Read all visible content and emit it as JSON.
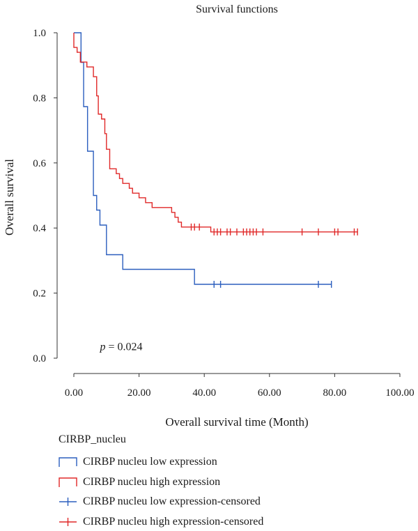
{
  "chart_data": {
    "type": "line",
    "subtype": "kaplan-meier step",
    "title": "Survival functions",
    "xlabel": "Overall survival time (Month)",
    "ylabel": "Overall survival",
    "xlim": [
      0,
      100
    ],
    "ylim": [
      0,
      1
    ],
    "x_ticks": [
      0,
      20,
      40,
      60,
      80,
      100
    ],
    "x_tick_labels": [
      "0.00",
      "20.00",
      "40.00",
      "60.00",
      "80.00",
      "100.00"
    ],
    "y_ticks": [
      0,
      0.2,
      0.4,
      0.6,
      0.8,
      1.0
    ],
    "y_tick_labels": [
      "0.0",
      "0.2",
      "0.4",
      "0.6",
      "0.8",
      "1.0"
    ],
    "grid": false,
    "annotation": {
      "italic": "p",
      "text": " = 0.024",
      "x": 8,
      "y": 0.02
    },
    "legend": {
      "title": "CIRBP_nucleu",
      "placement": "below",
      "entries": [
        {
          "label": "CIRBP nucleu low expression",
          "color": "#2b5ebe",
          "kind": "step"
        },
        {
          "label": "CIRBP nucleu high expression",
          "color": "#e02828",
          "kind": "step"
        },
        {
          "label": "CIRBP nucleu low expression-censored",
          "color": "#2b5ebe",
          "kind": "cross"
        },
        {
          "label": "CIRBP nucleu high expression-censored",
          "color": "#e02828",
          "kind": "cross"
        }
      ]
    },
    "series": [
      {
        "name": "CIRBP nucleu low expression",
        "color": "#2b5ebe",
        "steps": [
          [
            0,
            1.0
          ],
          [
            2.2,
            0.909
          ],
          [
            3,
            0.773
          ],
          [
            4.2,
            0.636
          ],
          [
            6,
            0.5
          ],
          [
            7,
            0.455
          ],
          [
            8,
            0.409
          ],
          [
            10,
            0.318
          ],
          [
            15,
            0.273
          ],
          [
            37,
            0.227
          ],
          [
            79,
            0.227
          ]
        ],
        "censored": [
          [
            43,
            0.227
          ],
          [
            45,
            0.227
          ],
          [
            75,
            0.227
          ],
          [
            79,
            0.227
          ]
        ]
      },
      {
        "name": "CIRBP nucleu high expression",
        "color": "#e02828",
        "steps": [
          [
            0,
            1.0
          ],
          [
            0,
            0.955
          ],
          [
            1,
            0.94
          ],
          [
            2,
            0.91
          ],
          [
            4,
            0.895
          ],
          [
            6,
            0.865
          ],
          [
            7,
            0.806
          ],
          [
            7.5,
            0.75
          ],
          [
            8.5,
            0.735
          ],
          [
            9.5,
            0.69
          ],
          [
            10,
            0.642
          ],
          [
            11,
            0.582
          ],
          [
            13,
            0.567
          ],
          [
            14,
            0.552
          ],
          [
            15,
            0.537
          ],
          [
            17,
            0.522
          ],
          [
            18,
            0.507
          ],
          [
            20,
            0.493
          ],
          [
            22,
            0.478
          ],
          [
            24,
            0.463
          ],
          [
            30,
            0.448
          ],
          [
            31,
            0.433
          ],
          [
            32,
            0.418
          ],
          [
            33,
            0.403
          ],
          [
            42,
            0.388
          ],
          [
            87,
            0.388
          ]
        ],
        "censored": [
          [
            36,
            0.403
          ],
          [
            37,
            0.403
          ],
          [
            38.5,
            0.403
          ],
          [
            43,
            0.388
          ],
          [
            44,
            0.388
          ],
          [
            45,
            0.388
          ],
          [
            47,
            0.388
          ],
          [
            48,
            0.388
          ],
          [
            50,
            0.388
          ],
          [
            52,
            0.388
          ],
          [
            53,
            0.388
          ],
          [
            54,
            0.388
          ],
          [
            55,
            0.388
          ],
          [
            56,
            0.388
          ],
          [
            58,
            0.388
          ],
          [
            70,
            0.388
          ],
          [
            75,
            0.388
          ],
          [
            80,
            0.388
          ],
          [
            81,
            0.388
          ],
          [
            86,
            0.388
          ],
          [
            87,
            0.388
          ]
        ]
      }
    ]
  }
}
